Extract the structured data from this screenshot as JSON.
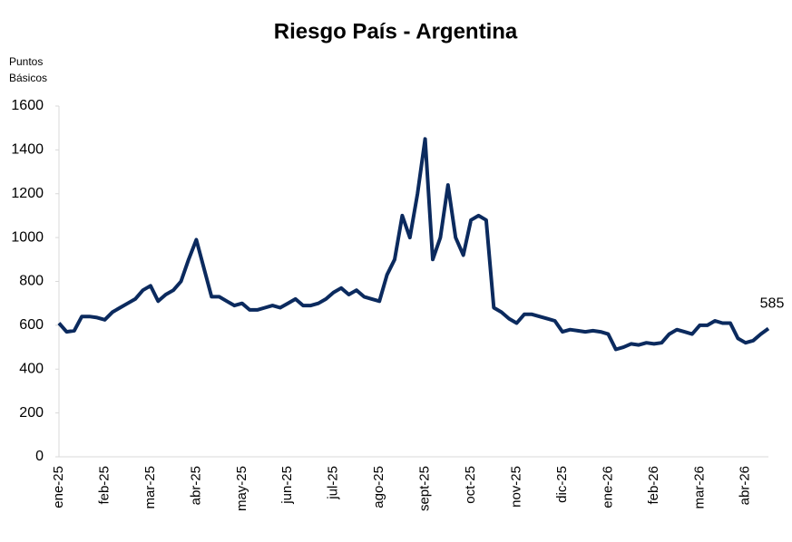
{
  "chart_data": {
    "type": "line",
    "title": "Riesgo País - Argentina",
    "y_label": [
      "Puntos",
      "Básicos"
    ],
    "categories": [
      "ene-25",
      null,
      null,
      null,
      null,
      null,
      "feb-25",
      null,
      null,
      null,
      null,
      null,
      "mar-25",
      null,
      null,
      null,
      null,
      null,
      "abr-25",
      null,
      null,
      null,
      null,
      null,
      "may-25",
      null,
      null,
      null,
      null,
      null,
      "jun-25",
      null,
      null,
      null,
      null,
      null,
      "jul-25",
      null,
      null,
      null,
      null,
      null,
      "ago-25",
      null,
      null,
      null,
      null,
      null,
      "sept-25",
      null,
      null,
      null,
      null,
      null,
      "oct-25",
      null,
      null,
      null,
      null,
      null,
      "nov-25",
      null,
      null,
      null,
      null,
      null,
      "dic-25",
      null,
      null,
      null,
      null,
      null,
      "ene-26",
      null,
      null,
      null,
      null,
      null,
      "feb-26",
      null,
      null,
      null,
      null,
      null,
      "mar-26",
      null,
      null,
      null,
      null,
      null,
      "abr-26",
      null,
      null,
      null
    ],
    "values": [
      610,
      570,
      575,
      640,
      640,
      635,
      625,
      660,
      680,
      700,
      720,
      760,
      780,
      710,
      740,
      760,
      800,
      900,
      990,
      860,
      730,
      730,
      710,
      690,
      700,
      670,
      670,
      680,
      690,
      680,
      700,
      720,
      690,
      690,
      700,
      720,
      750,
      770,
      740,
      760,
      730,
      720,
      710,
      830,
      900,
      1100,
      1000,
      1200,
      1450,
      900,
      1000,
      1240,
      1000,
      920,
      1080,
      1100,
      1080,
      680,
      660,
      630,
      610,
      650,
      650,
      640,
      630,
      620,
      570,
      580,
      575,
      570,
      575,
      570,
      560,
      490,
      500,
      515,
      510,
      520,
      515,
      520,
      560,
      580,
      570,
      560,
      600,
      600,
      620,
      610,
      610,
      540,
      520,
      530,
      560,
      585
    ],
    "color": "#0b2a5e",
    "label_last": true,
    "ylim": [
      0,
      1600
    ],
    "yticks": [
      0,
      200,
      400,
      600,
      800,
      1000,
      1200,
      1400,
      1600
    ]
  }
}
